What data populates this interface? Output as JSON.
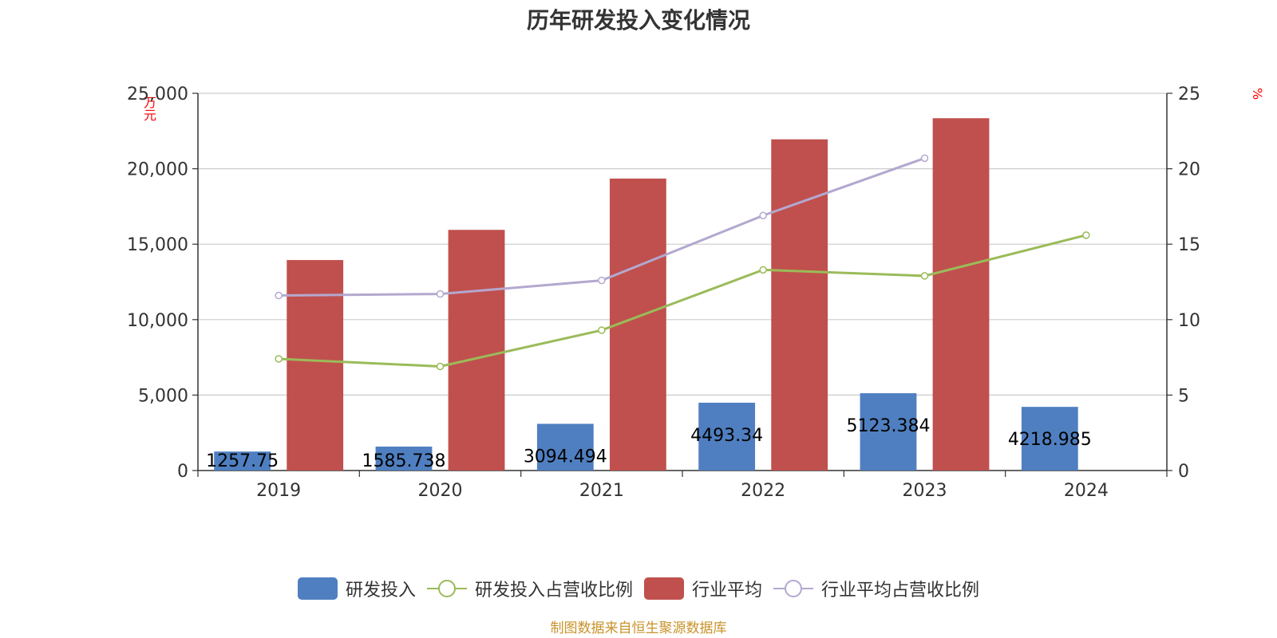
{
  "title": "历年研发投入变化情况",
  "source": "制图数据来自恒生聚源数据库",
  "chart_data": {
    "type": "bar",
    "title": "历年研发投入变化情况",
    "categories": [
      "2019",
      "2020",
      "2021",
      "2022",
      "2023",
      "2024"
    ],
    "y_left": {
      "unit": "万元",
      "ylim": [
        0,
        25000
      ],
      "ticks": [
        "0",
        "5,000",
        "10,000",
        "15,000",
        "20,000",
        "25,000"
      ]
    },
    "y_right": {
      "unit": "%",
      "ylim": [
        0,
        25
      ],
      "ticks": [
        "0",
        "5",
        "10",
        "15",
        "20",
        "25"
      ]
    },
    "grid": true,
    "legend_position": "bottom",
    "series": [
      {
        "name": "研发投入",
        "type": "bar",
        "axis": "left",
        "color": "#4f7fc0",
        "values": [
          1257.75,
          1585.738,
          3094.494,
          4493.34,
          5123.384,
          4218.985
        ],
        "labels": [
          "1257.75",
          "1585.738",
          "3094.494",
          "4493.34",
          "5123.384",
          "4218.985"
        ]
      },
      {
        "name": "研发投入占营收比例",
        "type": "line",
        "axis": "right",
        "color": "#9bbb59",
        "values": [
          7.4,
          6.9,
          9.3,
          13.3,
          12.9,
          15.6
        ]
      },
      {
        "name": "行业平均",
        "type": "bar",
        "axis": "left",
        "color": "#c0504d",
        "values": [
          13950,
          15950,
          19350,
          21950,
          23350,
          null
        ]
      },
      {
        "name": "行业平均占营收比例",
        "type": "line",
        "axis": "right",
        "color": "#b3a8cf",
        "values": [
          11.6,
          11.7,
          12.6,
          16.9,
          20.7,
          null
        ]
      }
    ]
  }
}
